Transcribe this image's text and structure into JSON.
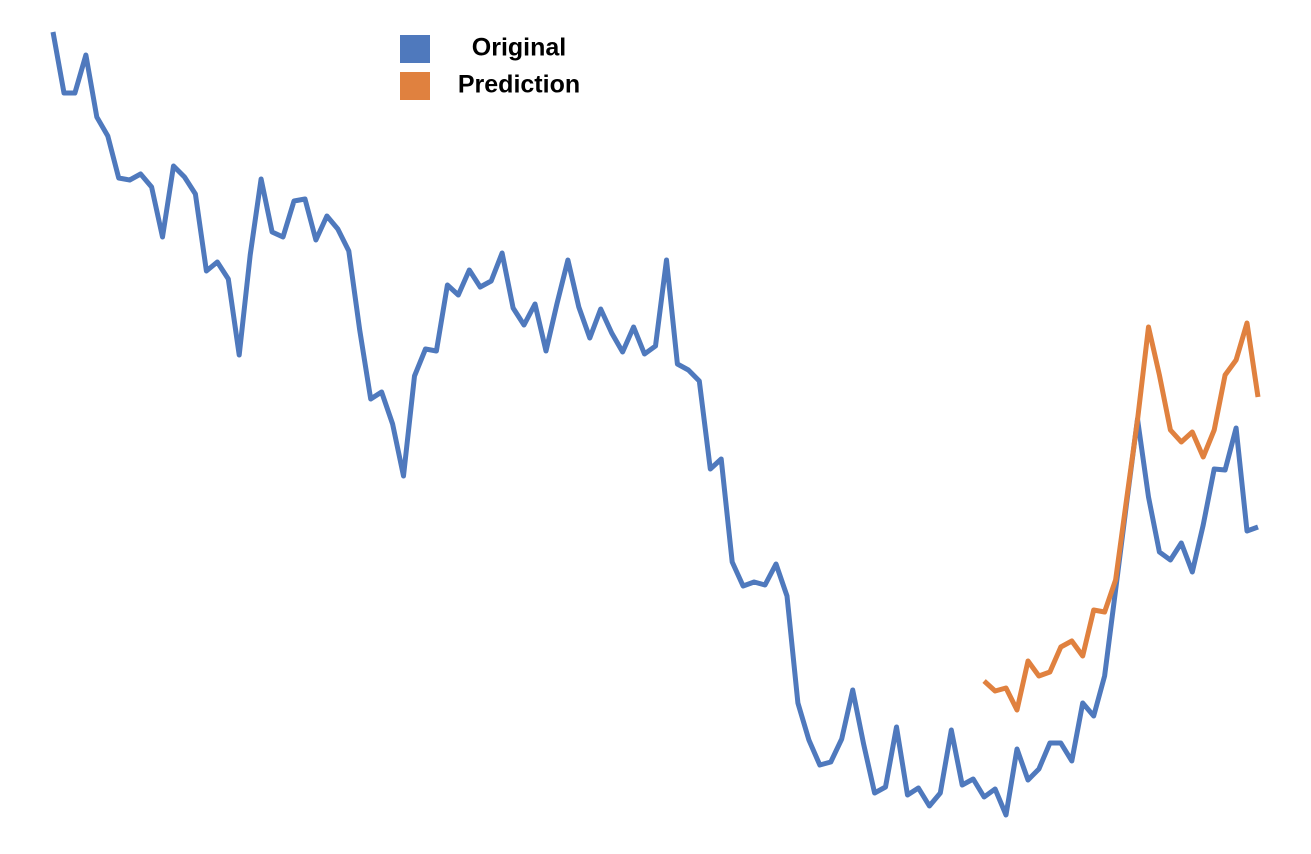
{
  "chart_data": {
    "type": "line",
    "series": [
      {
        "name": "Original",
        "color": "#4f79bd",
        "values": [
          78.8,
          72.7,
          72.7,
          76.5,
          70.3,
          68.4,
          64.2,
          64.0,
          64.6,
          63.3,
          58.3,
          65.4,
          64.3,
          62.6,
          54.9,
          55.8,
          54.1,
          46.5,
          56.5,
          64.1,
          58.8,
          58.3,
          61.9,
          62.1,
          58.0,
          60.4,
          59.1,
          56.9,
          49.0,
          42.1,
          42.8,
          39.6,
          34.4,
          44.4,
          47.1,
          46.9,
          53.5,
          52.5,
          55.0,
          53.3,
          53.9,
          56.7,
          51.2,
          49.5,
          51.6,
          46.9,
          51.6,
          56.0,
          51.3,
          48.2,
          51.1,
          48.7,
          46.8,
          49.3,
          46.6,
          47.4,
          56.0,
          45.6,
          45.0,
          43.9,
          35.1,
          36.1,
          25.8,
          23.4,
          23.8,
          23.5,
          25.6,
          22.4,
          11.7,
          8.0,
          5.5,
          5.8,
          8.1,
          13.0,
          7.6,
          2.7,
          3.3,
          9.3,
          2.5,
          3.2,
          1.4,
          2.7,
          9.0,
          3.5,
          4.1,
          2.3,
          3.1,
          0.5,
          7.1,
          4.0,
          5.1,
          7.7,
          7.7,
          5.9,
          11.7,
          10.4,
          14.4,
          23.0,
          31.6,
          40.1,
          32.3,
          26.8,
          26.0,
          27.7,
          24.8,
          29.5,
          35.1,
          35.0,
          39.2,
          28.9,
          29.3
        ]
      },
      {
        "name": "Prediction",
        "color": "#e0813f",
        "values": [
          null,
          null,
          null,
          null,
          null,
          null,
          null,
          null,
          null,
          null,
          null,
          null,
          null,
          null,
          null,
          null,
          null,
          null,
          null,
          null,
          null,
          null,
          null,
          null,
          null,
          null,
          null,
          null,
          null,
          null,
          null,
          null,
          null,
          null,
          null,
          null,
          null,
          null,
          null,
          null,
          null,
          null,
          null,
          null,
          null,
          null,
          null,
          null,
          null,
          null,
          null,
          null,
          null,
          null,
          null,
          null,
          null,
          null,
          null,
          null,
          null,
          null,
          null,
          null,
          null,
          null,
          null,
          null,
          null,
          null,
          null,
          null,
          null,
          null,
          null,
          null,
          null,
          null,
          null,
          null,
          null,
          null,
          null,
          null,
          null,
          13.9,
          12.9,
          13.2,
          11.0,
          15.9,
          14.4,
          14.8,
          17.3,
          17.9,
          16.4,
          21.0,
          20.8,
          24.0,
          32.0,
          40.0,
          49.3,
          44.5,
          39.0,
          37.8,
          38.8,
          36.3,
          39.0,
          44.5,
          46.0,
          49.7,
          42.3
        ]
      }
    ],
    "ylim": [
      0,
      80
    ]
  }
}
